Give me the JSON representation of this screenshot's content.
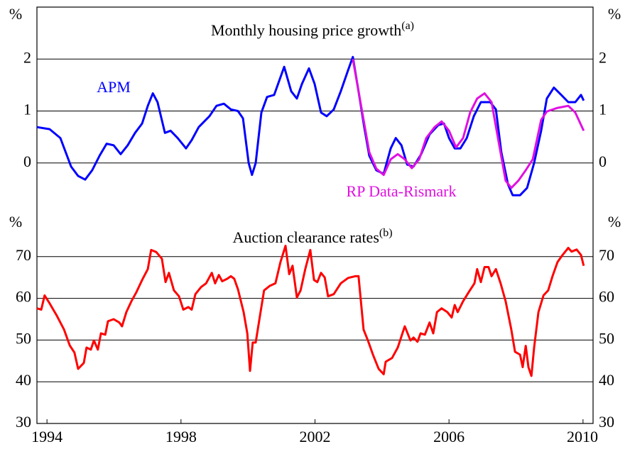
{
  "chart_data": [
    {
      "type": "line",
      "title": "Monthly housing price growth",
      "title_note": "(a)",
      "y_unit": "%",
      "xlim": [
        1993.7,
        2010.3
      ],
      "ylim": [
        -1,
        3
      ],
      "yticks": [
        0,
        1,
        2
      ],
      "grid": true,
      "series": [
        {
          "name": "APM",
          "color": "#0000ff",
          "x": [
            1993.7,
            1994.08,
            1994.4,
            1994.72,
            1994.93,
            1995.14,
            1995.35,
            1995.57,
            1995.78,
            1995.99,
            1996.2,
            1996.41,
            1996.63,
            1996.84,
            1997.01,
            1997.16,
            1997.3,
            1997.52,
            1997.69,
            1997.9,
            1998.15,
            1998.32,
            1998.53,
            1998.85,
            1999.06,
            1999.28,
            1999.49,
            1999.7,
            1999.85,
            2000.02,
            2000.12,
            2000.23,
            2000.4,
            2000.57,
            2000.78,
            2001.08,
            2001.29,
            2001.46,
            2001.61,
            2001.82,
            2001.99,
            2002.18,
            2002.35,
            2002.56,
            2002.77,
            2002.99,
            2003.13,
            2003.3,
            2003.47,
            2003.62,
            2003.83,
            2004.05,
            2004.26,
            2004.41,
            2004.58,
            2004.75,
            2004.94,
            2005.17,
            2005.42,
            2005.68,
            2005.85,
            2006.0,
            2006.17,
            2006.34,
            2006.53,
            2006.74,
            2006.95,
            2007.23,
            2007.4,
            2007.56,
            2007.76,
            2007.9,
            2008.12,
            2008.33,
            2008.54,
            2008.75,
            2008.92,
            2009.13,
            2009.35,
            2009.56,
            2009.77,
            2009.94,
            2010.02
          ],
          "values": [
            0.69,
            0.65,
            0.48,
            -0.07,
            -0.25,
            -0.32,
            -0.14,
            0.14,
            0.37,
            0.34,
            0.17,
            0.34,
            0.58,
            0.76,
            1.1,
            1.34,
            1.17,
            0.58,
            0.62,
            0.48,
            0.28,
            0.44,
            0.69,
            0.9,
            1.1,
            1.14,
            1.03,
            1.0,
            0.86,
            0,
            -0.23,
            0,
            0.97,
            1.27,
            1.31,
            1.85,
            1.38,
            1.24,
            1.52,
            1.82,
            1.52,
            0.97,
            0.9,
            1.03,
            1.38,
            1.79,
            2.04,
            1.38,
            0.69,
            0.14,
            -0.14,
            -0.21,
            0.28,
            0.48,
            0.34,
            -0.03,
            -0.07,
            0.17,
            0.55,
            0.73,
            0.76,
            0.48,
            0.28,
            0.28,
            0.48,
            0.9,
            1.17,
            1.17,
            1.03,
            0.21,
            -0.41,
            -0.62,
            -0.62,
            -0.48,
            0,
            0.62,
            1.24,
            1.45,
            1.31,
            1.17,
            1.17,
            1.31,
            1.2
          ]
        },
        {
          "name": "RP Data-Rismark",
          "color": "#e010e0",
          "x": [
            2003.13,
            2003.3,
            2003.47,
            2003.62,
            2003.83,
            2004.05,
            2004.26,
            2004.47,
            2004.68,
            2004.89,
            2005.11,
            2005.32,
            2005.57,
            2005.78,
            2006.0,
            2006.21,
            2006.42,
            2006.63,
            2006.84,
            2007.06,
            2007.27,
            2007.48,
            2007.69,
            2007.86,
            2008.07,
            2008.29,
            2008.5,
            2008.75,
            2008.92,
            2009.24,
            2009.56,
            2009.77,
            2010.02
          ],
          "values": [
            2.0,
            1.38,
            0.76,
            0.21,
            -0.11,
            -0.23,
            0.07,
            0.17,
            0.07,
            -0.1,
            0.07,
            0.48,
            0.69,
            0.8,
            0.62,
            0.3,
            0.48,
            0.97,
            1.24,
            1.34,
            1.17,
            0.41,
            -0.34,
            -0.48,
            -0.34,
            -0.14,
            0.07,
            0.83,
            0.99,
            1.06,
            1.1,
            0.97,
            0.62
          ]
        }
      ]
    },
    {
      "type": "line",
      "title": "Auction clearance rates",
      "title_note": "(b)",
      "y_unit": "%",
      "xlim": [
        1993.7,
        2010.3
      ],
      "ylim": [
        30,
        80
      ],
      "yticks": [
        30,
        40,
        50,
        60,
        70
      ],
      "grid": true,
      "xticks": [
        1994,
        1998,
        2002,
        2006,
        2010
      ],
      "series": [
        {
          "name": "Auction clearance rates",
          "color": "#ff0000",
          "x": [
            1993.7,
            1993.83,
            1993.93,
            1994.08,
            1994.29,
            1994.51,
            1994.68,
            1994.82,
            1994.93,
            1995.1,
            1995.18,
            1995.31,
            1995.4,
            1995.52,
            1995.61,
            1995.74,
            1995.82,
            1995.99,
            1996.16,
            1996.24,
            1996.37,
            1996.52,
            1996.67,
            1996.84,
            1997.01,
            1997.11,
            1997.26,
            1997.43,
            1997.54,
            1997.64,
            1997.79,
            1997.94,
            1998.07,
            1998.22,
            1998.32,
            1998.43,
            1998.6,
            1998.75,
            1998.92,
            1999.02,
            1999.13,
            1999.23,
            1999.38,
            1999.49,
            1999.59,
            1999.7,
            1999.87,
            1999.98,
            2000.06,
            2000.14,
            2000.23,
            2000.36,
            2000.48,
            2000.65,
            2000.82,
            2000.97,
            2001.12,
            2001.23,
            2001.33,
            2001.46,
            2001.57,
            2001.71,
            2001.86,
            2001.97,
            2002.07,
            2002.18,
            2002.29,
            2002.39,
            2002.56,
            2002.77,
            2002.99,
            2003.2,
            2003.3,
            2003.45,
            2003.58,
            2003.73,
            2003.9,
            2004.05,
            2004.11,
            2004.3,
            2004.47,
            2004.68,
            2004.85,
            2004.94,
            2005.06,
            2005.15,
            2005.28,
            2005.42,
            2005.53,
            2005.64,
            2005.78,
            2005.95,
            2006.08,
            2006.17,
            2006.26,
            2006.42,
            2006.59,
            2006.76,
            2006.84,
            2006.95,
            2007.06,
            2007.18,
            2007.27,
            2007.4,
            2007.54,
            2007.69,
            2007.86,
            2007.97,
            2008.12,
            2008.2,
            2008.29,
            2008.37,
            2008.46,
            2008.54,
            2008.67,
            2008.82,
            2008.96,
            2009.09,
            2009.24,
            2009.39,
            2009.56,
            2009.66,
            2009.81,
            2009.94,
            2010.02
          ],
          "values": [
            57.6,
            57.3,
            60.7,
            58.8,
            55.9,
            52.5,
            48.7,
            47,
            43.1,
            44.5,
            48.2,
            47.7,
            49.9,
            47.7,
            51.6,
            51.3,
            54.5,
            55,
            54.2,
            53.3,
            56.7,
            59.3,
            61.5,
            64.4,
            67,
            71.6,
            71.1,
            69.5,
            63.9,
            66.1,
            61.9,
            60.5,
            57.3,
            57.9,
            57.3,
            61,
            62.7,
            63.6,
            66.1,
            63.6,
            65.6,
            64.1,
            64.7,
            65.3,
            64.7,
            62.2,
            56.7,
            51.6,
            42.6,
            49.4,
            49.4,
            55.9,
            61.9,
            63,
            63.6,
            68.7,
            72.6,
            65.8,
            67.8,
            60.2,
            61.9,
            67,
            71.6,
            64.4,
            63.9,
            66.1,
            65,
            60.5,
            61,
            63.6,
            64.9,
            65.3,
            65.3,
            52.5,
            49.9,
            46.5,
            43.1,
            41.8,
            44.8,
            45.7,
            48.2,
            53.3,
            49.9,
            50.6,
            49.6,
            51.6,
            51.3,
            54.2,
            51.6,
            56.7,
            57.6,
            56.7,
            55.4,
            58.4,
            56.7,
            59.3,
            61.5,
            63.6,
            67,
            63.9,
            67.5,
            67.5,
            65.3,
            67,
            63.6,
            59.3,
            52.5,
            47.2,
            46.5,
            43.5,
            48.6,
            43.5,
            41.4,
            48.2,
            56.7,
            60.7,
            61.9,
            65.3,
            68.7,
            70.4,
            72.1,
            71.2,
            71.7,
            70.4,
            67.8
          ]
        }
      ]
    }
  ]
}
